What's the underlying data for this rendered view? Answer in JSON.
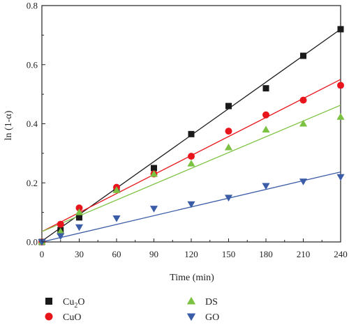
{
  "chart_data": {
    "type": "scatter",
    "xlabel": "Time (min)",
    "ylabel": "ln (1-α)",
    "xlim": [
      0,
      240
    ],
    "ylim": [
      0,
      0.8
    ],
    "x_ticks": [
      0,
      30,
      60,
      90,
      120,
      150,
      180,
      210,
      240
    ],
    "y_ticks": [
      0.0,
      0.2,
      0.4,
      0.6,
      0.8
    ],
    "x_tick_labels": [
      "0",
      "30",
      "60",
      "90",
      "120",
      "150",
      "180",
      "210",
      "240"
    ],
    "y_tick_labels": [
      "0.0",
      "0.2",
      "0.4",
      "0.6",
      "0.8"
    ],
    "grid": false,
    "legend_position": "bottom",
    "series": [
      {
        "name": "Cu2O",
        "label_base": "Cu",
        "label_sub": "2",
        "label_tail": "O",
        "marker": "square",
        "color": "#1a1a1a",
        "x": [
          0,
          15,
          30,
          60,
          90,
          120,
          150,
          180,
          210,
          240
        ],
        "y": [
          0.0,
          0.04,
          0.083,
          0.18,
          0.25,
          0.365,
          0.46,
          0.52,
          0.63,
          0.72
        ],
        "fit": [
          0.003,
          0.72
        ]
      },
      {
        "name": "CuO",
        "label_base": "CuO",
        "label_sub": "",
        "label_tail": "",
        "marker": "circle",
        "color": "#e8161c",
        "x": [
          0,
          15,
          30,
          60,
          90,
          120,
          150,
          180,
          210,
          240
        ],
        "y": [
          0.0,
          0.06,
          0.115,
          0.185,
          0.23,
          0.29,
          0.375,
          0.43,
          0.48,
          0.53
        ],
        "fit": [
          0.035,
          0.55
        ]
      },
      {
        "name": "DS",
        "label_base": "DS",
        "label_sub": "",
        "label_tail": "",
        "marker": "triangle-up",
        "color": "#7cc242",
        "x": [
          0,
          15,
          30,
          60,
          90,
          120,
          150,
          180,
          210,
          240
        ],
        "y": [
          0.0,
          0.035,
          0.1,
          0.175,
          0.23,
          0.265,
          0.32,
          0.38,
          0.4,
          0.423
        ],
        "fit": [
          0.035,
          0.463
        ]
      },
      {
        "name": "GO",
        "label_base": "GO",
        "label_sub": "",
        "label_tail": "",
        "marker": "triangle-down",
        "color": "#3b5da8",
        "x": [
          0,
          15,
          30,
          60,
          90,
          120,
          150,
          180,
          210,
          240
        ],
        "y": [
          0.0,
          0.02,
          0.05,
          0.08,
          0.113,
          0.128,
          0.15,
          0.19,
          0.205,
          0.22
        ],
        "fit": [
          0.0,
          0.237
        ]
      }
    ]
  }
}
